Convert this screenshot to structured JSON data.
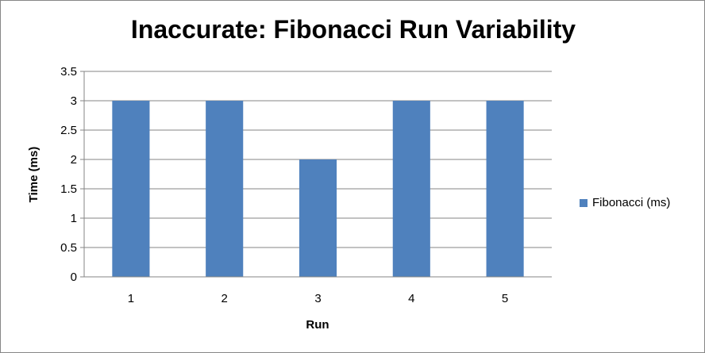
{
  "chart_data": {
    "type": "bar",
    "title": "Inaccurate: Fibonacci Run Variability",
    "xlabel": "Run",
    "ylabel": "Time (ms)",
    "categories": [
      "1",
      "2",
      "3",
      "4",
      "5"
    ],
    "series": [
      {
        "name": "Fibonacci (ms)",
        "values": [
          3,
          3,
          2,
          3,
          3
        ],
        "color": "#4f81bd"
      }
    ],
    "ylim": [
      0,
      3.5
    ],
    "yticks": [
      "0",
      "0.5",
      "1",
      "1.5",
      "2",
      "2.5",
      "3",
      "3.5"
    ],
    "grid": true,
    "legend_position": "right"
  }
}
